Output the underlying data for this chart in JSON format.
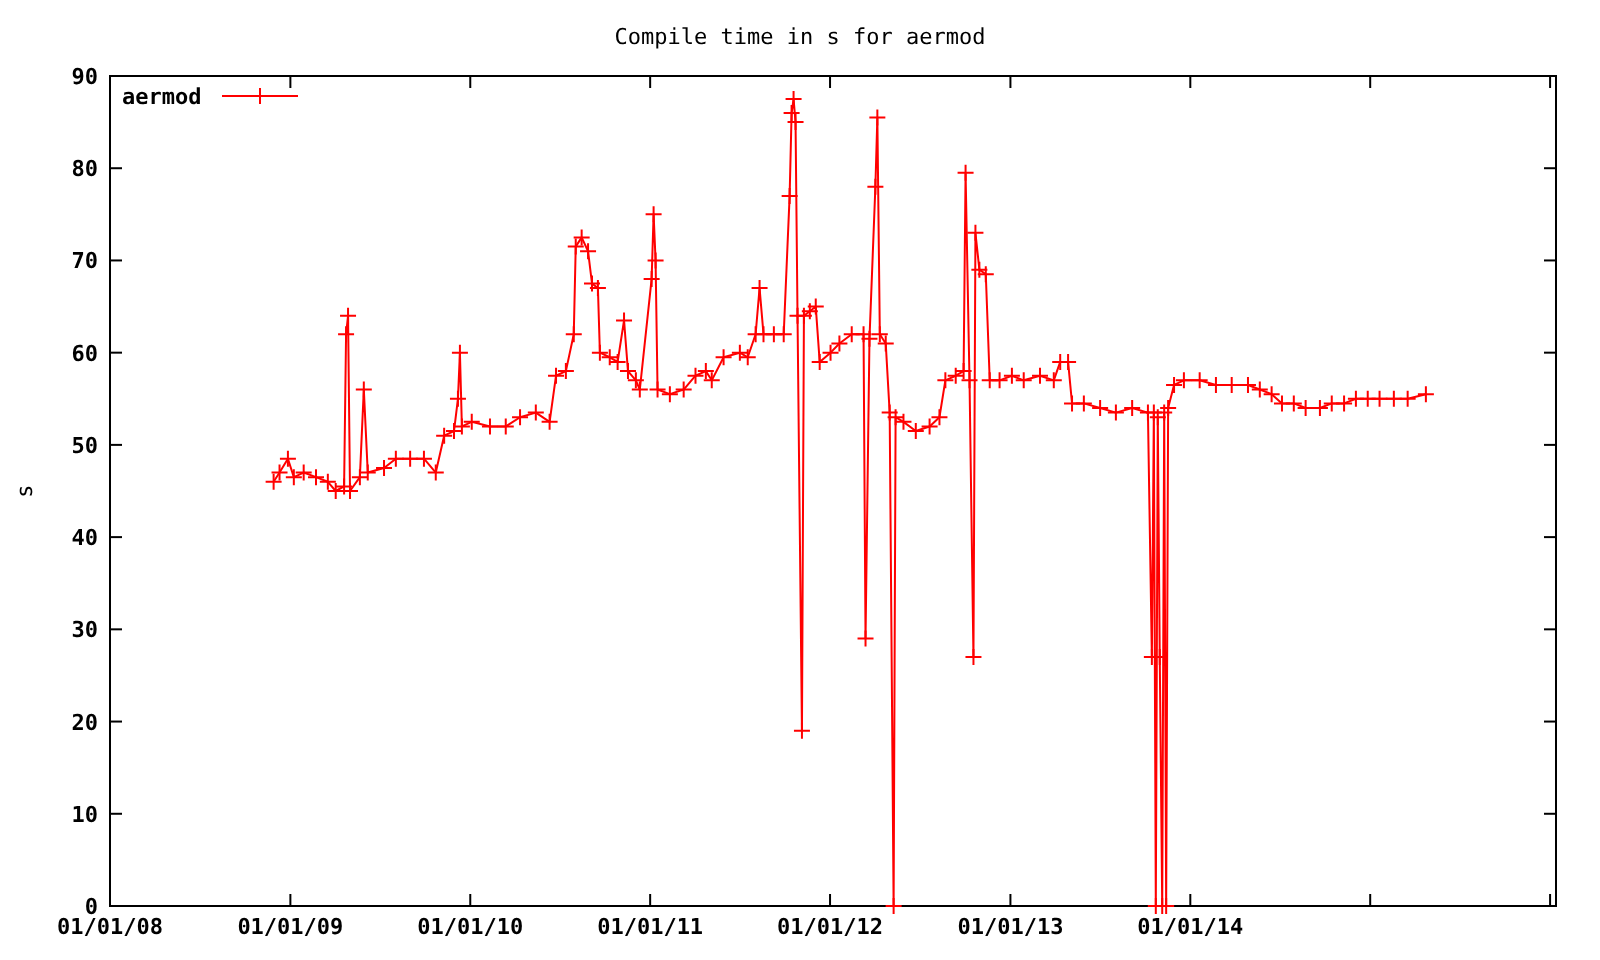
{
  "chart_data": {
    "type": "line",
    "title": "Compile time in s for aermod",
    "ylabel": "s",
    "legend": "top left",
    "marker": "cross",
    "line_style": "solid",
    "grid": false,
    "xlim": [
      "2008-01-01",
      "2016-01-13"
    ],
    "xticks": [
      {
        "value": "2008-01-01",
        "label": "01/01/08"
      },
      {
        "value": "2009-01-01",
        "label": "01/01/09"
      },
      {
        "value": "2010-01-01",
        "label": "01/01/10"
      },
      {
        "value": "2011-01-01",
        "label": "01/01/11"
      },
      {
        "value": "2012-01-01",
        "label": "01/01/12"
      },
      {
        "value": "2013-01-01",
        "label": "01/01/13"
      },
      {
        "value": "2014-01-01",
        "label": "01/01/14"
      },
      {
        "value": "2015-01-01",
        "label": null
      },
      {
        "value": "2016-01-01",
        "label": null
      }
    ],
    "ylim": [
      0,
      90
    ],
    "yticks": [
      0,
      10,
      20,
      30,
      40,
      50,
      60,
      70,
      80,
      90
    ],
    "x": [
      "2008-11-28",
      "2008-12-10",
      "2008-12-27",
      "2009-01-08",
      "2009-01-28",
      "2009-02-22",
      "2009-03-18",
      "2009-04-03",
      "2009-04-20",
      "2009-04-24",
      "2009-04-28",
      "2009-05-02",
      "2009-05-22",
      "2009-05-30",
      "2009-06-07",
      "2009-07-10",
      "2009-08-03",
      "2009-09-01",
      "2009-09-29",
      "2009-10-23",
      "2009-11-09",
      "2009-11-29",
      "2009-12-07",
      "2009-12-11",
      "2009-12-15",
      "2010-01-04",
      "2010-02-10",
      "2010-03-14",
      "2010-04-12",
      "2010-05-14",
      "2010-06-11",
      "2010-06-24",
      "2010-07-14",
      "2010-07-30",
      "2010-08-03",
      "2010-08-15",
      "2010-08-28",
      "2010-09-05",
      "2010-09-17",
      "2010-09-21",
      "2010-10-11",
      "2010-10-27",
      "2010-11-09",
      "2010-11-17",
      "2010-12-03",
      "2010-12-11",
      "2011-01-04",
      "2011-01-08",
      "2011-01-12",
      "2011-01-16",
      "2011-02-10",
      "2011-03-10",
      "2011-04-03",
      "2011-04-24",
      "2011-05-06",
      "2011-05-30",
      "2011-07-02",
      "2011-07-18",
      "2011-08-03",
      "2011-08-11",
      "2011-08-19",
      "2011-09-09",
      "2011-09-29",
      "2011-10-11",
      "2011-10-15",
      "2011-10-19",
      "2011-10-23",
      "2011-10-27",
      "2011-11-05",
      "2011-11-09",
      "2011-11-21",
      "2011-12-03",
      "2011-12-11",
      "2012-01-02",
      "2012-01-20",
      "2012-02-14",
      "2012-03-09",
      "2012-03-13",
      "2012-03-21",
      "2012-04-02",
      "2012-04-06",
      "2012-04-11",
      "2012-04-23",
      "2012-05-01",
      "2012-05-09",
      "2012-05-13",
      "2012-05-29",
      "2012-06-23",
      "2012-07-21",
      "2012-08-10",
      "2012-08-22",
      "2012-09-12",
      "2012-09-28",
      "2012-10-02",
      "2012-10-10",
      "2012-10-18",
      "2012-10-22",
      "2012-10-30",
      "2012-11-12",
      "2012-11-20",
      "2012-12-10",
      "2013-01-04",
      "2013-01-28",
      "2013-03-02",
      "2013-03-30",
      "2013-04-12",
      "2013-04-28",
      "2013-05-06",
      "2013-05-30",
      "2013-07-02",
      "2013-08-03",
      "2013-09-05",
      "2013-10-07",
      "2013-10-15",
      "2013-10-19",
      "2013-10-23",
      "2013-10-27",
      "2013-10-31",
      "2013-11-05",
      "2013-11-09",
      "2013-11-13",
      "2013-11-17",
      "2013-11-29",
      "2013-12-19",
      "2014-01-20",
      "2014-02-22",
      "2014-03-26",
      "2014-04-28",
      "2014-05-22",
      "2014-06-15",
      "2014-07-06",
      "2014-07-30",
      "2014-08-23",
      "2014-09-21",
      "2014-10-15",
      "2014-11-09",
      "2014-12-03",
      "2014-12-27",
      "2015-01-20",
      "2015-02-18",
      "2015-03-18",
      "2015-04-24"
    ],
    "series": [
      {
        "name": "aermod",
        "color": "#ff0000",
        "values": [
          46,
          47,
          48.5,
          46.5,
          47,
          46.5,
          46,
          45,
          45.5,
          62,
          64,
          45,
          46.5,
          56,
          47,
          47.5,
          48.5,
          48.5,
          48.5,
          47,
          51,
          51.5,
          55,
          60,
          52,
          52.5,
          52,
          52,
          53,
          53.5,
          52.5,
          57.5,
          58,
          62,
          71.5,
          72.5,
          71,
          67.5,
          67,
          60,
          59.5,
          59,
          63.5,
          58,
          57,
          56,
          68,
          75,
          70,
          56,
          55.5,
          56,
          57.5,
          58,
          57,
          59.5,
          60,
          59.5,
          62,
          67,
          62,
          62,
          62,
          77,
          86,
          87.5,
          85,
          64,
          19,
          64,
          64.5,
          65,
          59,
          60,
          61,
          62,
          62,
          29,
          61.5,
          78,
          85.5,
          62,
          61,
          53.5,
          0,
          53,
          52.5,
          51.5,
          52,
          53,
          57,
          57.5,
          58,
          79.5,
          57,
          27,
          73,
          69,
          68.5,
          57,
          57,
          57.5,
          57,
          57.5,
          57,
          59,
          59,
          54.5,
          54.5,
          54,
          53.5,
          54,
          53.5,
          27,
          53.5,
          0,
          53,
          27,
          0,
          53.5,
          0,
          54,
          56.5,
          57,
          57,
          56.5,
          56.5,
          56.5,
          56,
          55.5,
          54.5,
          54.5,
          54,
          54,
          54.5,
          54.5,
          55,
          55,
          55,
          55,
          55,
          55.5
        ]
      }
    ]
  }
}
